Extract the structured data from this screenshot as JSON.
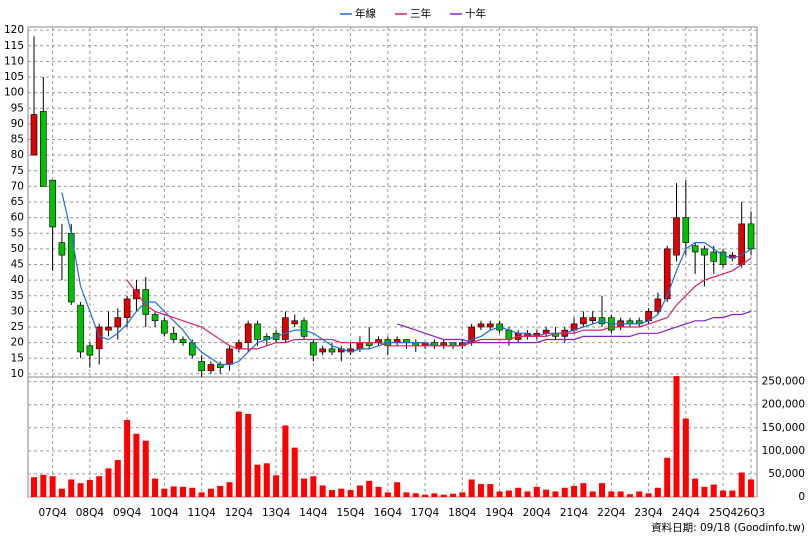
{
  "chart_data": {
    "type": "candlestick",
    "legend_position": "top",
    "grid": true,
    "up_color": "#e00000",
    "down_color": "#00c000",
    "volume_color": "#ff0000",
    "categories": [
      null,
      null,
      "07Q4",
      null,
      null,
      null,
      "08Q4",
      null,
      null,
      null,
      "09Q4",
      null,
      null,
      null,
      "10Q4",
      null,
      null,
      null,
      "11Q4",
      null,
      null,
      null,
      "12Q4",
      null,
      null,
      null,
      "13Q4",
      null,
      null,
      null,
      "14Q4",
      null,
      null,
      null,
      "15Q4",
      null,
      null,
      null,
      "16Q4",
      null,
      null,
      null,
      "17Q4",
      null,
      null,
      null,
      "18Q4",
      null,
      null,
      null,
      "19Q4",
      null,
      null,
      null,
      "20Q4",
      null,
      null,
      null,
      "21Q4",
      null,
      null,
      null,
      "22Q4",
      null,
      null,
      null,
      "23Q4",
      null,
      null,
      null,
      "24Q4",
      null,
      null,
      null,
      "25Q4",
      null,
      null,
      "26Q3"
    ],
    "open": [
      80,
      94,
      72,
      52,
      55,
      32,
      19,
      18,
      24,
      25,
      28,
      34,
      37,
      29,
      27,
      23,
      21,
      20,
      14,
      11,
      13,
      13,
      18,
      20,
      26,
      22,
      23,
      21,
      26,
      27,
      20,
      17,
      18,
      17,
      17,
      18,
      20,
      20,
      21,
      20,
      21,
      20,
      19,
      20,
      19,
      20,
      19,
      20,
      25,
      25,
      26,
      24,
      21,
      22,
      22,
      23,
      23,
      22,
      24,
      26,
      27,
      28,
      28,
      25,
      27,
      27,
      27,
      30,
      34,
      48,
      60,
      51,
      50,
      49,
      49,
      47,
      45,
      58
    ],
    "high": [
      118,
      105,
      72,
      58,
      58,
      33,
      20,
      26,
      30,
      31,
      35,
      40,
      41,
      30,
      28,
      25,
      22,
      21,
      16,
      14,
      14,
      19,
      21,
      27,
      27,
      23,
      24,
      30,
      29,
      28,
      21,
      19,
      20,
      19,
      20,
      22,
      25,
      22,
      22,
      22,
      21,
      21,
      20,
      21,
      21,
      20,
      21,
      26,
      27,
      27,
      27,
      25,
      24,
      24,
      24,
      25,
      25,
      25,
      28,
      30,
      30,
      35,
      29,
      28,
      28,
      28,
      31,
      36,
      51,
      71,
      72,
      52,
      51,
      51,
      50,
      49,
      65,
      62
    ],
    "low": [
      80,
      70,
      43,
      40,
      32,
      15,
      12,
      13,
      22,
      21,
      25,
      30,
      25,
      25,
      22,
      20,
      19,
      15,
      9,
      10,
      10,
      11,
      17,
      17,
      19,
      19,
      20,
      20,
      25,
      21,
      14,
      16,
      16,
      14,
      16,
      17,
      18,
      19,
      16,
      19,
      18,
      17,
      18,
      18,
      18,
      18,
      18,
      19,
      24,
      24,
      23,
      19,
      20,
      21,
      21,
      22,
      21,
      20,
      23,
      25,
      26,
      25,
      23,
      24,
      25,
      25,
      26,
      29,
      33,
      46,
      48,
      42,
      38,
      42,
      44,
      46,
      44,
      48
    ],
    "close": [
      93,
      70,
      57,
      48,
      33,
      17,
      16,
      25,
      25,
      28,
      34,
      37,
      29,
      27,
      23,
      21,
      20,
      16,
      11,
      13,
      12,
      18,
      20,
      26,
      21,
      21,
      21,
      28,
      27,
      22,
      16,
      18,
      17,
      18,
      18,
      20,
      19,
      21,
      19,
      21,
      20,
      19,
      20,
      19,
      20,
      19,
      20,
      25,
      26,
      26,
      24,
      21,
      23,
      23,
      23,
      24,
      22,
      24,
      26,
      28,
      28,
      26,
      24,
      27,
      26,
      26,
      30,
      34,
      50,
      60,
      52,
      49,
      48,
      46,
      45,
      48,
      58,
      50
    ],
    "volume": [
      43000,
      48000,
      45000,
      18000,
      38000,
      30000,
      37000,
      45000,
      62000,
      80000,
      167000,
      137000,
      122000,
      40000,
      18000,
      23000,
      22000,
      20000,
      10000,
      18000,
      24000,
      32000,
      185000,
      180000,
      70000,
      73000,
      47000,
      155000,
      107000,
      40000,
      45000,
      25000,
      15000,
      18000,
      15000,
      25000,
      35000,
      22000,
      10000,
      32000,
      10000,
      8000,
      5000,
      8000,
      5000,
      7000,
      10000,
      38000,
      28000,
      28000,
      12000,
      14000,
      20000,
      12000,
      22000,
      16000,
      12000,
      20000,
      24000,
      30000,
      12000,
      30000,
      12000,
      12000,
      6000,
      12000,
      8000,
      20000,
      85000,
      262000,
      170000,
      40000,
      22000,
      27000,
      14000,
      14000,
      53000,
      38000
    ],
    "series": [
      {
        "name": "年線",
        "color": "#1e6fd9",
        "values": [
          null,
          null,
          null,
          68,
          55,
          38,
          30,
          22,
          21,
          23,
          26,
          30,
          33,
          33,
          30,
          27,
          24,
          20,
          17,
          15,
          13,
          13,
          14,
          17,
          20,
          21,
          22,
          23,
          24,
          24,
          23,
          21,
          19,
          18,
          17,
          18,
          18,
          19,
          20,
          20,
          20,
          20,
          20,
          19,
          19,
          19,
          19,
          21,
          22,
          24,
          25,
          24,
          23,
          23,
          22,
          23,
          23,
          23,
          24,
          25,
          26,
          27,
          26,
          26,
          26,
          26,
          27,
          29,
          35,
          43,
          50,
          52,
          52,
          50,
          48,
          47,
          48,
          50
        ]
      },
      {
        "name": "三年",
        "color": "#e0206a",
        "values": [
          null,
          null,
          null,
          null,
          null,
          null,
          null,
          null,
          null,
          null,
          40,
          36,
          32,
          30,
          29,
          28,
          27,
          26,
          25,
          23,
          21,
          19,
          18,
          18,
          18,
          19,
          20,
          20,
          21,
          21,
          21,
          21,
          21,
          20,
          20,
          20,
          20,
          20,
          19,
          19,
          19,
          19,
          19,
          19,
          19,
          19,
          19,
          20,
          21,
          21,
          21,
          21,
          22,
          22,
          22,
          22,
          23,
          23,
          23,
          24,
          24,
          24,
          25,
          25,
          25,
          25,
          26,
          27,
          28,
          32,
          35,
          38,
          40,
          41,
          42,
          43,
          45,
          47
        ]
      },
      {
        "name": "十年",
        "color": "#8a20c0",
        "values": [
          null,
          null,
          null,
          null,
          null,
          null,
          null,
          null,
          null,
          null,
          null,
          null,
          null,
          null,
          null,
          null,
          null,
          null,
          null,
          null,
          null,
          null,
          null,
          null,
          null,
          null,
          null,
          null,
          null,
          null,
          null,
          null,
          null,
          null,
          null,
          null,
          null,
          null,
          null,
          26,
          25,
          24,
          23,
          22,
          21,
          21,
          21,
          20,
          20,
          20,
          20,
          20,
          20,
          20,
          20,
          21,
          21,
          21,
          21,
          22,
          22,
          22,
          22,
          22,
          22,
          23,
          23,
          23,
          24,
          25,
          26,
          27,
          27,
          28,
          28,
          29,
          29,
          30
        ]
      }
    ],
    "ylim": [
      9,
      121
    ],
    "yticks": [
      10,
      15,
      20,
      25,
      30,
      35,
      40,
      45,
      50,
      55,
      60,
      65,
      70,
      75,
      80,
      85,
      90,
      95,
      100,
      105,
      110,
      115,
      120
    ],
    "y2lim": [
      0,
      260000
    ],
    "y2ticks": [
      0,
      {
        "value": 50000,
        "label": "50,000"
      },
      {
        "value": 100000,
        "label": "100,000"
      },
      {
        "value": 150000,
        "label": "150,000"
      },
      {
        "value": 200000,
        "label": "200,000"
      },
      {
        "value": 250000,
        "label": "250,000"
      }
    ],
    "footnote": "資料日期: 09/18  (Goodinfo.tw)"
  }
}
